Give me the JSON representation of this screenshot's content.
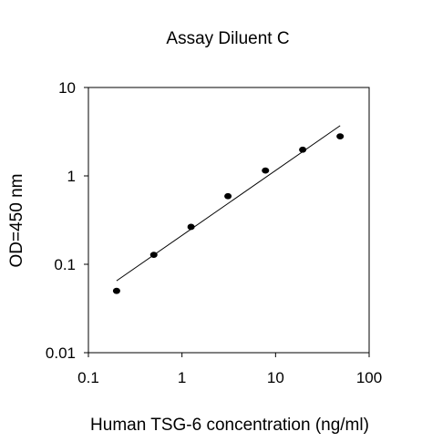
{
  "chart_data": {
    "type": "scatter",
    "title": "Assay Diluent C",
    "xlabel": "Human TSG-6 concentration (ng/ml)",
    "ylabel": "OD=450 nm",
    "x_scale": "log",
    "y_scale": "log",
    "xlim": [
      0.1,
      100
    ],
    "ylim": [
      0.01,
      10
    ],
    "x_ticks": [
      {
        "value": 0.1,
        "label": "0.1"
      },
      {
        "value": 1,
        "label": "1"
      },
      {
        "value": 10,
        "label": "10"
      },
      {
        "value": 100,
        "label": "100"
      }
    ],
    "y_ticks": [
      {
        "value": 0.01,
        "label": "0.01"
      },
      {
        "value": 0.1,
        "label": "0.1"
      },
      {
        "value": 1,
        "label": "1"
      },
      {
        "value": 10,
        "label": "10"
      }
    ],
    "grid": false,
    "legend": "none",
    "series": [
      {
        "x": [
          0.2,
          0.5,
          1.25,
          3.1,
          7.8,
          19.5,
          49
        ],
        "y": [
          0.05,
          0.128,
          0.265,
          0.59,
          1.15,
          1.98,
          2.8
        ]
      }
    ],
    "trendline": {
      "x": [
        0.2,
        49
      ],
      "y": [
        0.065,
        3.7
      ]
    },
    "colors": {
      "marker": "#000000",
      "line": "#000000",
      "axis": "#000000"
    }
  }
}
